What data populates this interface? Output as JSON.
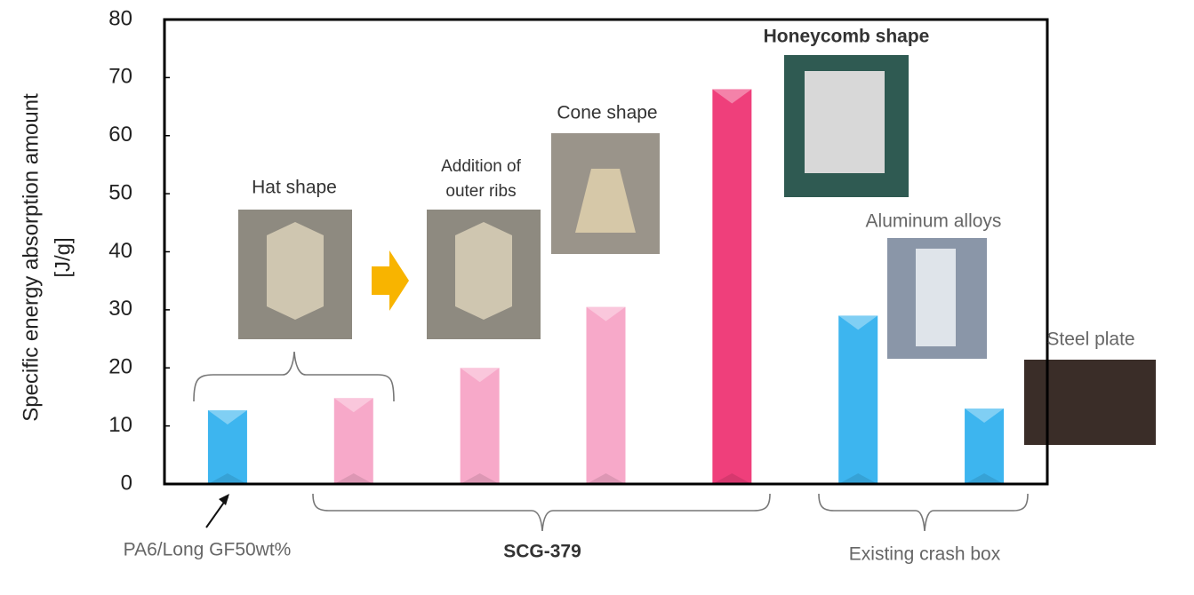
{
  "chart_data": {
    "type": "bar",
    "y_label": [
      "Specific energy absorption amount",
      "[J/g]"
    ],
    "categories": [
      null,
      null,
      null,
      null,
      null,
      null,
      null
    ],
    "values": [
      12.7,
      14.8,
      20,
      30.5,
      68,
      29,
      13
    ],
    "colors": [
      "#3db5ef",
      "#f7a9c9",
      "#f7a9c9",
      "#f7a9c9",
      "#ef3f7b",
      "#3db5ef",
      "#3db5ef"
    ],
    "ylim": [
      0,
      80
    ],
    "yticks": [
      0,
      10,
      20,
      30,
      40,
      50,
      60,
      70,
      80
    ],
    "annotations": [
      "Hat shape",
      [
        "Addition of",
        "outer ribs"
      ],
      "Cone shape",
      "Honeycomb shape",
      "Aluminum alloys",
      "Steel plate",
      "PA6/Long GF50wt%",
      "SCG-379",
      "Existing crash box"
    ]
  }
}
